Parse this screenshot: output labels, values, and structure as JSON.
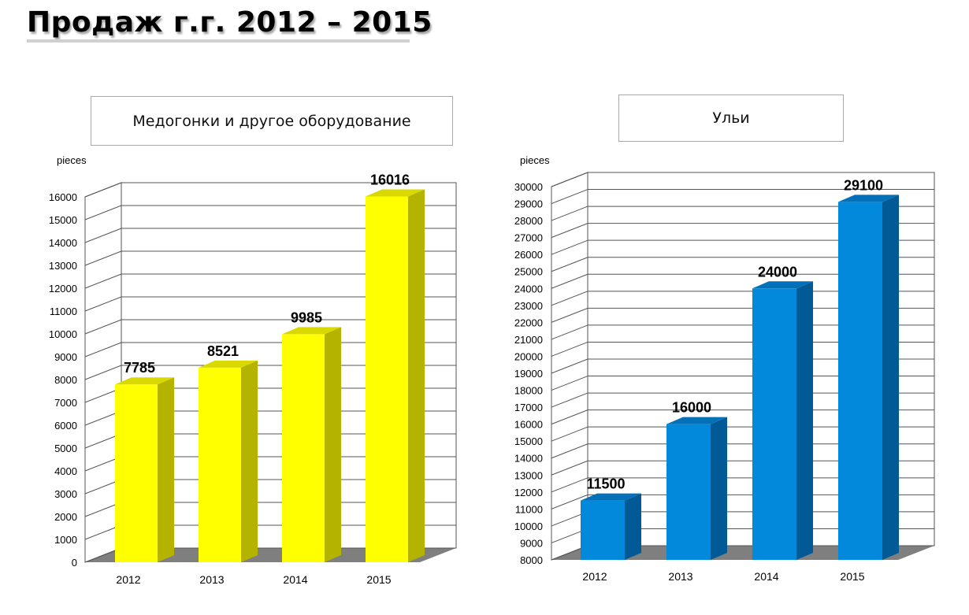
{
  "page": {
    "title": "Продаж г.г. 2012 – 2015"
  },
  "chart_data": [
    {
      "type": "bar",
      "title": "Медогонки и другое оборудование",
      "ylabel": "pieces",
      "categories": [
        "2012",
        "2013",
        "2014",
        "2015"
      ],
      "values": [
        7785,
        8521,
        9985,
        16016
      ],
      "data_labels": [
        "7785",
        "8521",
        "9985",
        "16016"
      ],
      "ylim": [
        0,
        16000
      ],
      "ytick_step": 1000,
      "grid": true,
      "style": "3d",
      "colors": {
        "front": "#ffff00",
        "side": "#b3b300",
        "top": "#d9d900"
      }
    },
    {
      "type": "bar",
      "title": "Ульи",
      "ylabel": "pieces",
      "categories": [
        "2012",
        "2013",
        "2014",
        "2015"
      ],
      "values": [
        11500,
        16000,
        24000,
        29100
      ],
      "data_labels": [
        "11500",
        "16000",
        "24000",
        "29100"
      ],
      "ylim": [
        8000,
        30000
      ],
      "ytick_step": 1000,
      "grid": true,
      "style": "3d",
      "colors": {
        "front": "#0389dc",
        "side": "#015a96",
        "top": "#0470b8"
      }
    }
  ]
}
